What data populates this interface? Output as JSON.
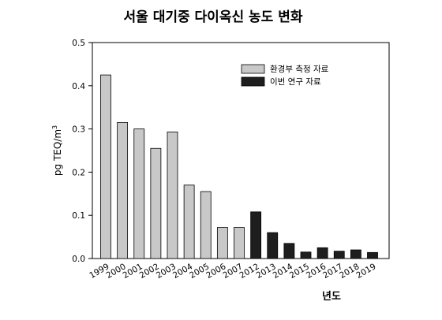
{
  "chart_data": {
    "type": "bar",
    "title": "서울 대기중 다이옥신 농도 변화",
    "xlabel": "년도",
    "ylabel": "pg TEQ/m",
    "ylabel_sup": "3",
    "ylim": [
      0,
      0.5
    ],
    "yticks": [
      "0.0",
      "0.1",
      "0.2",
      "0.3",
      "0.4",
      "0.5"
    ],
    "legend_position": "top-right",
    "categories": [
      "1999",
      "2000",
      "2001",
      "2002",
      "2003",
      "2004",
      "2005",
      "2006",
      "2007",
      "2012",
      "2013",
      "2014",
      "2015",
      "2016",
      "2017",
      "2018",
      "2019"
    ],
    "series": [
      {
        "name": "환경부 측정 자료",
        "color": "#c8c8c8",
        "values": [
          0.425,
          0.315,
          0.3,
          0.255,
          0.293,
          0.17,
          0.155,
          0.072,
          0.072,
          null,
          null,
          null,
          null,
          null,
          null,
          null,
          null
        ]
      },
      {
        "name": "이번 연구 자료",
        "color": "#1e1e1e",
        "values": [
          null,
          null,
          null,
          null,
          null,
          null,
          null,
          null,
          null,
          0.108,
          0.06,
          0.035,
          0.015,
          0.025,
          0.017,
          0.02,
          0.014
        ]
      }
    ]
  }
}
